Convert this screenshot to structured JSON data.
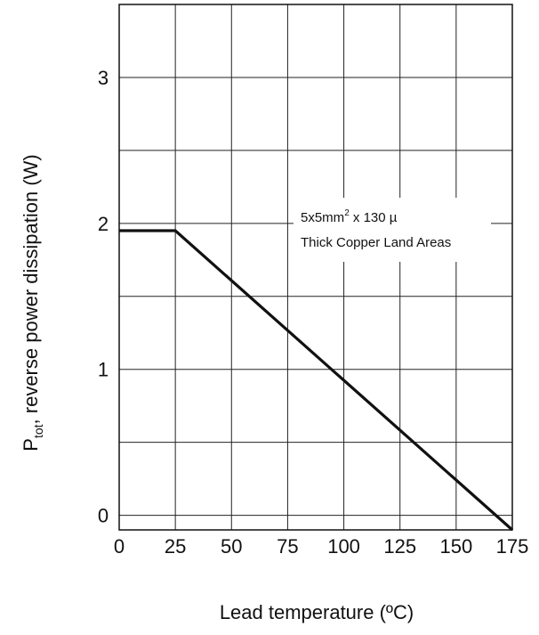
{
  "chart_data": {
    "type": "line",
    "xlabel": "Lead temperature  (ºC)",
    "ylabel_main": "P",
    "ylabel_sub": "tot",
    "ylabel_rest": ", reverse power dissipation (W)",
    "x_ticks": [
      0,
      25,
      50,
      75,
      100,
      125,
      150,
      175
    ],
    "y_ticks": [
      0,
      1,
      2,
      3
    ],
    "y_ticks_shown": [
      "0",
      "1",
      "2",
      "3"
    ],
    "xlim": [
      0,
      175
    ],
    "ylim": [
      -0.1,
      3.5
    ],
    "grid": true,
    "series": [
      {
        "x": [
          0,
          25,
          175
        ],
        "y": [
          1.95,
          1.95,
          -0.1
        ],
        "color": "#111111"
      }
    ],
    "annotation": {
      "line1_prefix": "5x5mm",
      "line1_sup": "2",
      "line1_suffix": " x 130 µ",
      "line2": "Thick Copper Land Areas"
    }
  }
}
